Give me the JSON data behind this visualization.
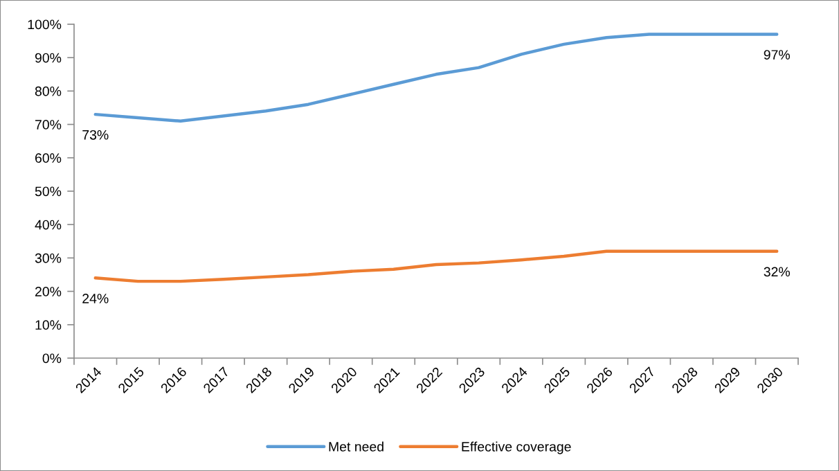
{
  "chart_data": {
    "type": "line",
    "categories": [
      "2014",
      "2015",
      "2016",
      "2017",
      "2018",
      "2019",
      "2020",
      "2021",
      "2022",
      "2023",
      "2024",
      "2025",
      "2026",
      "2027",
      "2028",
      "2029",
      "2030"
    ],
    "series": [
      {
        "name": "Met need",
        "color": "#5b9bd5",
        "values": [
          73,
          72,
          71,
          72.5,
          74,
          76,
          79,
          82,
          85,
          87,
          91,
          94,
          96,
          97,
          97,
          97,
          97
        ],
        "value_labels": [
          "73%",
          null,
          null,
          null,
          null,
          null,
          null,
          null,
          null,
          null,
          null,
          null,
          null,
          null,
          null,
          null,
          "97%"
        ]
      },
      {
        "name": "Effective coverage",
        "color": "#ed7d31",
        "values": [
          24,
          23,
          23,
          23.6,
          24.3,
          25,
          26,
          26.6,
          28,
          28.5,
          29.4,
          30.5,
          32,
          32,
          32,
          32,
          32
        ],
        "value_labels": [
          "24%",
          null,
          null,
          null,
          null,
          null,
          null,
          null,
          null,
          null,
          null,
          null,
          null,
          null,
          null,
          null,
          "32%"
        ]
      }
    ],
    "ylim": [
      0,
      100
    ],
    "yticks": [
      {
        "value": 0,
        "label": "0%"
      },
      {
        "value": 10,
        "label": "10%"
      },
      {
        "value": 20,
        "label": "20%"
      },
      {
        "value": 30,
        "label": "30%"
      },
      {
        "value": 40,
        "label": "40%"
      },
      {
        "value": 50,
        "label": "50%"
      },
      {
        "value": 60,
        "label": "60%"
      },
      {
        "value": 70,
        "label": "70%"
      },
      {
        "value": 80,
        "label": "80%"
      },
      {
        "value": 90,
        "label": "90%"
      },
      {
        "value": 100,
        "label": "100%"
      }
    ],
    "legend": "bottom",
    "grid": false,
    "marker": "none",
    "line_style": "solid"
  }
}
